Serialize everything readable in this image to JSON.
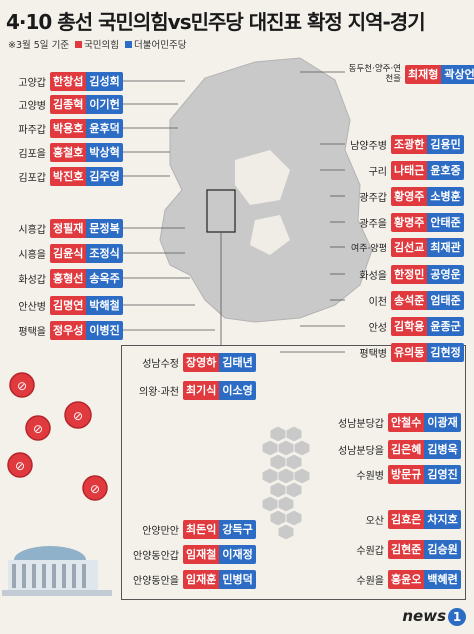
{
  "title": "4·10 총선 국민의힘vs민주당 대진표 확정 지역-경기",
  "note": "※3월 5일 기준",
  "legend": [
    {
      "label": "국민의힘",
      "color": "#e03a3f"
    },
    {
      "label": "더불어민주당",
      "color": "#2c6cc4"
    }
  ],
  "colors": {
    "ppp": "#e03a3f",
    "dem": "#2c6cc4",
    "map": "#c9c9c9"
  },
  "left": [
    {
      "district": "고양갑",
      "ppp": "한창섭",
      "dem": "김성회"
    },
    {
      "district": "고양병",
      "ppp": "김종혁",
      "dem": "이기헌"
    },
    {
      "district": "파주갑",
      "ppp": "박용호",
      "dem": "윤후덕"
    },
    {
      "district": "김포을",
      "ppp": "홍철호",
      "dem": "박상혁"
    },
    {
      "district": "김포갑",
      "ppp": "박진호",
      "dem": "김주영"
    },
    {
      "district": "시흥갑",
      "ppp": "정필재",
      "dem": "문정복"
    },
    {
      "district": "시흥을",
      "ppp": "김윤식",
      "dem": "조정식"
    },
    {
      "district": "화성갑",
      "ppp": "홍형선",
      "dem": "송옥주"
    },
    {
      "district": "안산병",
      "ppp": "김명연",
      "dem": "박해철"
    },
    {
      "district": "평택을",
      "ppp": "정우성",
      "dem": "이병진"
    }
  ],
  "right": [
    {
      "district": "동두천·양주·연천을",
      "ppp": "최재형",
      "dem": "곽상언"
    },
    {
      "district": "남양주병",
      "ppp": "조광한",
      "dem": "김용민"
    },
    {
      "district": "구리",
      "ppp": "나태근",
      "dem": "윤호중"
    },
    {
      "district": "광주갑",
      "ppp": "황영주",
      "dem": "소병훈"
    },
    {
      "district": "광주을",
      "ppp": "황명주",
      "dem": "안태준"
    },
    {
      "district": "여주·양평",
      "ppp": "김선교",
      "dem": "최재관"
    },
    {
      "district": "화성을",
      "ppp": "한정민",
      "dem": "공영운"
    },
    {
      "district": "이천",
      "ppp": "송석준",
      "dem": "엄태준"
    },
    {
      "district": "안성",
      "ppp": "김학용",
      "dem": "윤종군"
    },
    {
      "district": "평택병",
      "ppp": "유의동",
      "dem": "김현정"
    }
  ],
  "inset_left": [
    {
      "district": "성남수정",
      "ppp": "장영하",
      "dem": "김태년"
    },
    {
      "district": "의왕·과천",
      "ppp": "최기식",
      "dem": "이소영"
    },
    {
      "district": "안양만안",
      "ppp": "최돈익",
      "dem": "강득구"
    },
    {
      "district": "안양동안갑",
      "ppp": "임재철",
      "dem": "이재정"
    },
    {
      "district": "안양동안을",
      "ppp": "임재훈",
      "dem": "민병덕"
    }
  ],
  "inset_right": [
    {
      "district": "성남분당갑",
      "ppp": "안철수",
      "dem": "이광재"
    },
    {
      "district": "성남분당을",
      "ppp": "김은혜",
      "dem": "김병욱"
    },
    {
      "district": "수원병",
      "ppp": "방문규",
      "dem": "김영진"
    },
    {
      "district": "오산",
      "ppp": "김효은",
      "dem": "차지호"
    },
    {
      "district": "수원갑",
      "ppp": "김현준",
      "dem": "김승원"
    },
    {
      "district": "수원을",
      "ppp": "홍윤오",
      "dem": "백혜련"
    }
  ],
  "logo": {
    "text": "news",
    "mark": "1"
  }
}
